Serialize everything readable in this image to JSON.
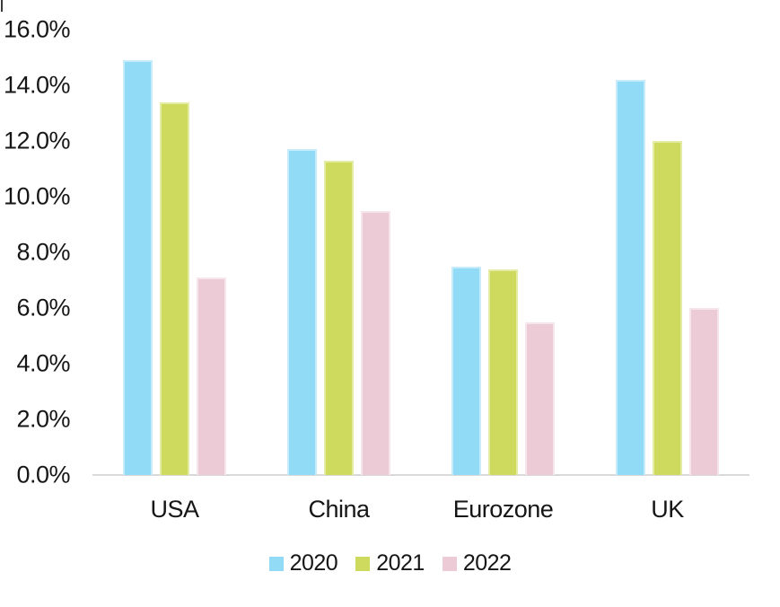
{
  "chart_data": {
    "type": "bar",
    "title": "",
    "xlabel": "",
    "ylabel": "",
    "categories": [
      "USA",
      "China",
      "Eurozone",
      "UK"
    ],
    "series": [
      {
        "name": "2020",
        "color": "#92DBF7",
        "edge": "#C6EBFB",
        "values": [
          14.9,
          11.7,
          7.5,
          14.2
        ]
      },
      {
        "name": "2021",
        "color": "#CDDA5E",
        "edge": "#E4EBA3",
        "values": [
          13.4,
          11.3,
          7.4,
          12.0
        ]
      },
      {
        "name": "2022",
        "color": "#ECCBD6",
        "edge": "#F6E5EC",
        "values": [
          7.1,
          9.5,
          5.5,
          6.0
        ]
      }
    ],
    "ylim": [
      0,
      16
    ],
    "y_tick_step": 2,
    "y_tick_labels": [
      "0.0%",
      "2.0%",
      "4.0%",
      "6.0%",
      "8.0%",
      "10.0%",
      "12.0%",
      "14.0%",
      "16.0%"
    ],
    "grid": false,
    "legend_position": "bottom",
    "legend_entries": [
      "2020",
      "2021",
      "2022"
    ],
    "axis_line_color": "#D9D9D9",
    "text_color": "#161616",
    "background_color": "#FFFFFF"
  }
}
